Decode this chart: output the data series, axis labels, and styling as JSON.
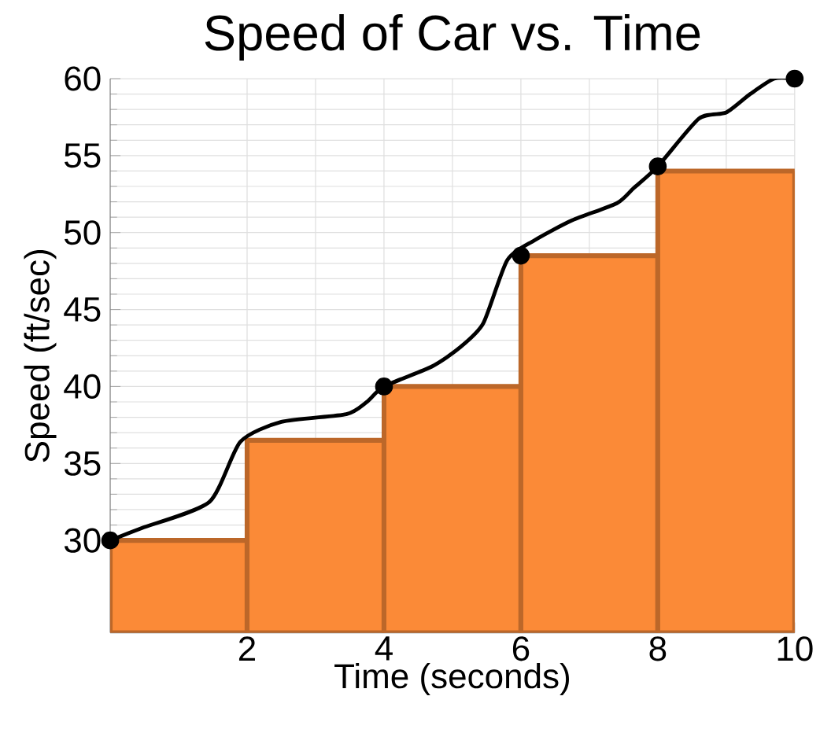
{
  "chart_data": {
    "type": "line",
    "title": "Speed of Car vs. Time",
    "xlabel": "Time (seconds)",
    "ylabel": "Speed (ft/sec)",
    "xlim": [
      0,
      10
    ],
    "ylim": [
      24,
      60
    ],
    "xticks": [
      2,
      4,
      6,
      8,
      10
    ],
    "yticks": [
      30,
      35,
      40,
      45,
      50,
      55,
      60
    ],
    "grid": true,
    "series": [
      {
        "type": "histogram",
        "color": "#fb8a37",
        "bins": [
          0,
          2,
          4,
          6,
          8,
          10
        ],
        "values": [
          30,
          36.5,
          40,
          48.5,
          54
        ]
      },
      {
        "color": "#000000",
        "x": [
          0,
          0.46,
          1.45,
          1.9,
          2.5,
          3.45,
          3.75,
          4,
          4.7,
          5.1,
          5.45,
          5.8,
          6.2,
          6.75,
          7.4,
          7.65,
          8,
          8.6,
          9,
          9.35,
          9.7,
          10
        ],
        "values": [
          30,
          30.8,
          32.5,
          36.4,
          37.7,
          38.2,
          39,
          40,
          41.3,
          42.5,
          44.1,
          48.2,
          49.5,
          50.8,
          51.9,
          52.9,
          54.3,
          57.4,
          57.8,
          59,
          60,
          60
        ]
      },
      {
        "type": "scatter",
        "marker": "circle",
        "color": "#000000",
        "x": [
          0,
          4,
          6,
          8,
          10
        ],
        "values": [
          30,
          40,
          48.5,
          54.3,
          60
        ]
      }
    ]
  }
}
